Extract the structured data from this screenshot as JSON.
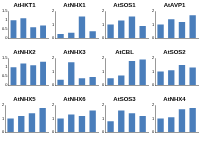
{
  "chart_data": [
    {
      "type": "bar",
      "title": "AtHKT1",
      "categories": [
        null,
        null,
        null,
        null
      ],
      "values": [
        1.0,
        1.1,
        0.6,
        0.7
      ],
      "color": "#4a7ebb",
      "ylim": [
        0,
        1.5
      ],
      "yticks": [
        0,
        0.5,
        1,
        1.5
      ],
      "grid": false,
      "tick_labels": "y"
    },
    {
      "type": "bar",
      "title": "AtNHX1",
      "categories": [
        null,
        null,
        null,
        null
      ],
      "values": [
        0.3,
        0.4,
        1.6,
        0.5
      ],
      "color": "#4a7ebb",
      "ylim": [
        0,
        2
      ],
      "yticks": [
        0,
        1,
        2
      ],
      "grid": false,
      "tick_labels": "y"
    },
    {
      "type": "bar",
      "title": "AtSOS1",
      "categories": [
        null,
        null,
        null,
        null
      ],
      "values": [
        1.0,
        1.3,
        1.6,
        0.9
      ],
      "color": "#4a7ebb",
      "ylim": [
        0,
        2
      ],
      "yticks": [
        0,
        1,
        2
      ],
      "grid": false,
      "tick_labels": "y"
    },
    {
      "type": "bar",
      "title": "AtAVP1",
      "categories": [
        null,
        null,
        null,
        null
      ],
      "values": [
        1.0,
        1.4,
        1.2,
        1.7
      ],
      "color": "#4a7ebb",
      "ylim": [
        0,
        2
      ],
      "yticks": [
        0,
        1,
        2
      ],
      "grid": false,
      "tick_labels": "y"
    },
    {
      "type": "bar",
      "title": "AtNHX2",
      "categories": [
        null,
        null,
        null,
        null
      ],
      "values": [
        1.0,
        1.2,
        1.1,
        1.3
      ],
      "color": "#4a7ebb",
      "ylim": [
        0,
        1.5
      ],
      "yticks": [
        0,
        0.5,
        1,
        1.5
      ],
      "grid": false,
      "tick_labels": "y"
    },
    {
      "type": "bar",
      "title": "AtNHX3",
      "categories": [
        null,
        null,
        null,
        null
      ],
      "values": [
        0.4,
        1.7,
        0.5,
        0.6
      ],
      "color": "#4a7ebb",
      "ylim": [
        0,
        2
      ],
      "yticks": [
        0,
        1,
        2
      ],
      "grid": false,
      "tick_labels": "y"
    },
    {
      "type": "bar",
      "title": "AtCBL",
      "categories": [
        null,
        null,
        null,
        null
      ],
      "values": [
        0.5,
        0.7,
        1.8,
        1.9
      ],
      "color": "#4a7ebb",
      "ylim": [
        0,
        2
      ],
      "yticks": [
        0,
        1,
        2
      ],
      "grid": false,
      "tick_labels": "y"
    },
    {
      "type": "bar",
      "title": "AtSOS2",
      "categories": [
        null,
        null,
        null,
        null
      ],
      "values": [
        1.0,
        1.1,
        1.5,
        1.3
      ],
      "color": "#4a7ebb",
      "ylim": [
        0,
        2
      ],
      "yticks": [
        0,
        1,
        2
      ],
      "grid": false,
      "tick_labels": "y"
    },
    {
      "type": "bar",
      "title": "AtNHX5",
      "categories": [
        null,
        null,
        null,
        null
      ],
      "values": [
        1.0,
        1.2,
        1.4,
        1.8
      ],
      "color": "#4a7ebb",
      "ylim": [
        0,
        2
      ],
      "yticks": [
        0,
        1,
        2
      ],
      "grid": false,
      "tick_labels": "y"
    },
    {
      "type": "bar",
      "title": "AtNHX6",
      "categories": [
        null,
        null,
        null,
        null
      ],
      "values": [
        1.0,
        1.3,
        1.2,
        1.6
      ],
      "color": "#4a7ebb",
      "ylim": [
        0,
        2
      ],
      "yticks": [
        0,
        1,
        2
      ],
      "grid": false,
      "tick_labels": "y"
    },
    {
      "type": "bar",
      "title": "AtSOS3",
      "categories": [
        null,
        null,
        null,
        null
      ],
      "values": [
        0.8,
        1.6,
        1.4,
        1.2
      ],
      "color": "#4a7ebb",
      "ylim": [
        0,
        2
      ],
      "yticks": [
        0,
        1,
        2
      ],
      "grid": false,
      "tick_labels": "y"
    },
    {
      "type": "bar",
      "title": "AtNHX4",
      "categories": [
        null,
        null,
        null,
        null
      ],
      "values": [
        1.0,
        1.1,
        1.7,
        1.8
      ],
      "color": "#4a7ebb",
      "ylim": [
        0,
        2
      ],
      "yticks": [
        0,
        1,
        2
      ],
      "grid": false,
      "tick_labels": "y"
    }
  ]
}
